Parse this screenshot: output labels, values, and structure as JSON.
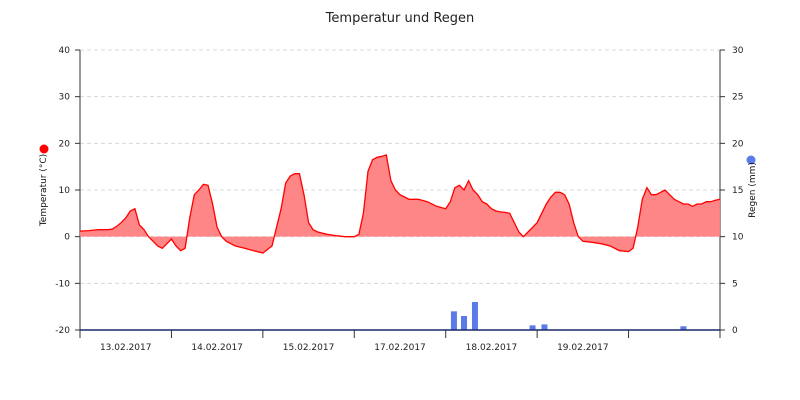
{
  "chart_data": {
    "type": "area",
    "title": "Temperatur und Regen",
    "y_left": {
      "label": "Temperatur (°C)",
      "min": -20,
      "max": 40,
      "ticks": [
        -20,
        -10,
        0,
        10,
        20,
        30,
        40
      ]
    },
    "y_right": {
      "label": "Regen (mm)",
      "min": 0,
      "max": 30,
      "ticks": [
        0,
        5,
        10,
        15,
        20,
        25,
        30
      ]
    },
    "x_labels": [
      "13.02.2017",
      "14.02.2017",
      "15.02.2017",
      "17.02.2017",
      "18.02.2017",
      "19.02.2017"
    ],
    "x_label_positions": [
      0.5,
      1.5,
      2.5,
      3.5,
      4.5,
      5.5
    ],
    "x_range": [
      0,
      7
    ],
    "grid": true,
    "series": [
      {
        "name": "Temperatur (°C)",
        "type": "area",
        "color": "#ff0000",
        "fill": "#ff8080",
        "axis": "left",
        "x": [
          0.0,
          0.1,
          0.2,
          0.3,
          0.35,
          0.4,
          0.45,
          0.5,
          0.55,
          0.6,
          0.65,
          0.7,
          0.75,
          0.8,
          0.85,
          0.9,
          0.95,
          1.0,
          1.05,
          1.1,
          1.15,
          1.2,
          1.25,
          1.3,
          1.35,
          1.4,
          1.45,
          1.5,
          1.55,
          1.6,
          1.65,
          1.7,
          1.8,
          1.9,
          2.0,
          2.1,
          2.2,
          2.25,
          2.3,
          2.35,
          2.4,
          2.45,
          2.5,
          2.55,
          2.6,
          2.7,
          2.8,
          2.9,
          3.0,
          3.05,
          3.1,
          3.15,
          3.2,
          3.25,
          3.3,
          3.35,
          3.4,
          3.45,
          3.5,
          3.55,
          3.6,
          3.65,
          3.7,
          3.8,
          3.9,
          4.0,
          4.05,
          4.1,
          4.15,
          4.2,
          4.25,
          4.3,
          4.35,
          4.4,
          4.45,
          4.5,
          4.55,
          4.6,
          4.65,
          4.7,
          4.8,
          4.85,
          4.9,
          4.95,
          5.0,
          5.05,
          5.1,
          5.15,
          5.2,
          5.25,
          5.3,
          5.35,
          5.4,
          5.45,
          5.5,
          5.6,
          5.7,
          5.8,
          5.9,
          6.0,
          6.05,
          6.1,
          6.15,
          6.2,
          6.25,
          6.3,
          6.35,
          6.4,
          6.45,
          6.5,
          6.55,
          6.6,
          6.65,
          6.7,
          6.75,
          6.8,
          6.85,
          6.9,
          6.95,
          7.0
        ],
        "y": [
          1.2,
          1.3,
          1.5,
          1.5,
          1.6,
          2.2,
          3.0,
          4.0,
          5.5,
          6.0,
          2.5,
          1.5,
          0.0,
          -1.0,
          -2.0,
          -2.5,
          -1.5,
          -0.5,
          -2.0,
          -3.0,
          -2.5,
          4.0,
          9.0,
          10.0,
          11.2,
          11.0,
          7.0,
          2.0,
          0.0,
          -1.0,
          -1.5,
          -2.0,
          -2.5,
          -3.0,
          -3.5,
          -2.0,
          6.0,
          11.5,
          13.0,
          13.5,
          13.5,
          9.0,
          3.0,
          1.5,
          1.0,
          0.5,
          0.2,
          0.0,
          0.0,
          0.5,
          5.0,
          14.0,
          16.5,
          17.0,
          17.2,
          17.5,
          12.0,
          10.0,
          9.0,
          8.5,
          8.0,
          8.0,
          8.0,
          7.5,
          6.5,
          6.0,
          7.5,
          10.5,
          11.0,
          10.0,
          12.0,
          10.0,
          9.0,
          7.5,
          7.0,
          6.0,
          5.5,
          5.3,
          5.2,
          5.0,
          1.0,
          0.0,
          1.0,
          2.0,
          3.0,
          5.0,
          7.0,
          8.5,
          9.5,
          9.5,
          9.0,
          7.0,
          3.0,
          0.0,
          -1.0,
          -1.2,
          -1.5,
          -2.0,
          -3.0,
          -3.2,
          -2.5,
          2.0,
          8.0,
          10.5,
          9.0,
          9.0,
          9.5,
          10.0,
          9.0,
          8.0,
          7.5,
          7.0,
          7.0,
          6.5,
          7.0,
          7.0,
          7.5,
          7.5,
          7.8,
          8.0
        ]
      },
      {
        "name": "Regen (mm)",
        "type": "bar",
        "color": "#5b7be8",
        "axis": "right",
        "x": [
          4.09,
          4.2,
          4.32,
          4.95,
          5.08,
          6.6
        ],
        "y": [
          2.0,
          1.5,
          3.0,
          0.5,
          0.6,
          0.4
        ]
      }
    ]
  }
}
